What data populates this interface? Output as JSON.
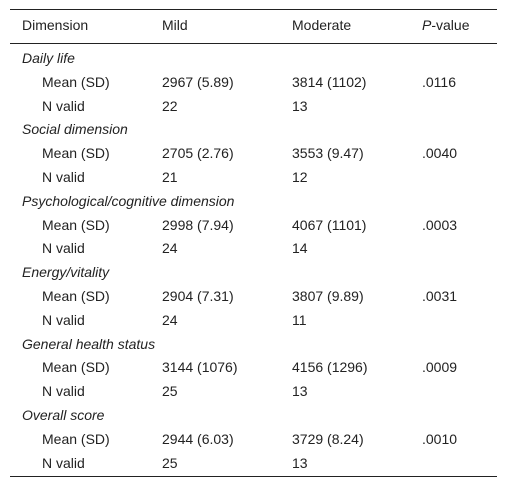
{
  "table": {
    "headers": {
      "dimension": "Dimension",
      "mild": "Mild",
      "moderate": "Moderate",
      "pvalue_italic": "P",
      "pvalue_rest": "-value"
    },
    "sections": [
      {
        "title": "Daily life",
        "mean_label": "Mean (SD)",
        "mean_mild": "2967 (5.89)",
        "mean_moderate": "3814 (1102)",
        "p": ".0116",
        "n_label": "N valid",
        "n_mild": "22",
        "n_moderate": "13"
      },
      {
        "title": "Social dimension",
        "mean_label": "Mean (SD)",
        "mean_mild": "2705 (2.76)",
        "mean_moderate": "3553 (9.47)",
        "p": ".0040",
        "n_label": "N valid",
        "n_mild": "21",
        "n_moderate": "12"
      },
      {
        "title": "Psychological/cognitive dimension",
        "mean_label": "Mean (SD)",
        "mean_mild": "2998 (7.94)",
        "mean_moderate": "4067 (1101)",
        "p": ".0003",
        "n_label": "N valid",
        "n_mild": "24",
        "n_moderate": "14"
      },
      {
        "title": "Energy/vitality",
        "mean_label": "Mean (SD)",
        "mean_mild": "2904 (7.31)",
        "mean_moderate": "3807 (9.89)",
        "p": ".0031",
        "n_label": "N valid",
        "n_mild": "24",
        "n_moderate": "11"
      },
      {
        "title": "General health status",
        "mean_label": "Mean (SD)",
        "mean_mild": "3144 (1076)",
        "mean_moderate": "4156 (1296)",
        "p": ".0009",
        "n_label": "N valid",
        "n_mild": "25",
        "n_moderate": "13"
      },
      {
        "title": "Overall score",
        "mean_label": "Mean (SD)",
        "mean_mild": "2944 (6.03)",
        "mean_moderate": "3729 (8.24)",
        "p": ".0010",
        "n_label": "N valid",
        "n_mild": "25",
        "n_moderate": "13"
      }
    ]
  }
}
